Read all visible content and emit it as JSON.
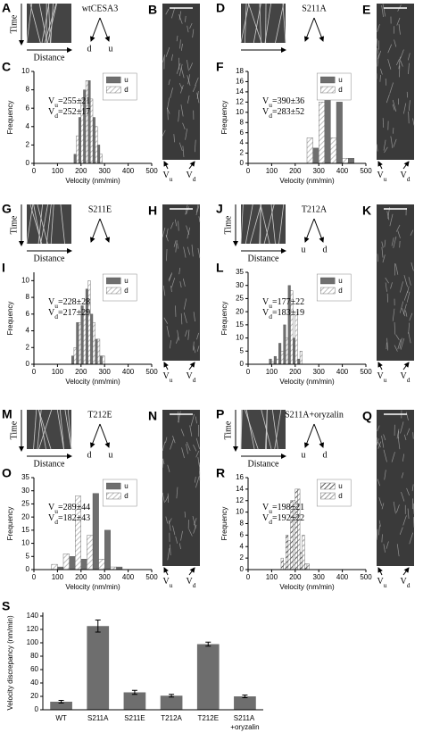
{
  "kymographs": [
    {
      "panel": "A",
      "title": "wtCESA3",
      "time": "Time",
      "distance": "Distance",
      "left": "d",
      "right": "u"
    },
    {
      "panel": "D",
      "title": "S211A"
    },
    {
      "panel": "G",
      "title": "S211E",
      "time": "Time",
      "distance": "Distance"
    },
    {
      "panel": "J",
      "title": "T212A",
      "time": "Time",
      "distance": "Distance",
      "left": "u",
      "right": "d"
    },
    {
      "panel": "M",
      "title": "T212E",
      "time": "Time",
      "distance": "Distance",
      "left": "d",
      "right": "u"
    },
    {
      "panel": "P",
      "title": "S211A+oryzalin",
      "time": "Time",
      "distance": "Distance",
      "left": "u",
      "right": "d"
    }
  ],
  "images": [
    {
      "panel": "B",
      "labels": [
        "Vu",
        "Vd"
      ]
    },
    {
      "panel": "E",
      "labels": [
        "Vu",
        "Vd"
      ]
    },
    {
      "panel": "H",
      "labels": [
        "Vu",
        "Vd"
      ]
    },
    {
      "panel": "K",
      "labels": [
        "Vu",
        "Vd"
      ]
    },
    {
      "panel": "N",
      "labels": [
        "Vu",
        "Vd"
      ]
    },
    {
      "panel": "Q",
      "labels": [
        "Vu",
        "Vd"
      ]
    }
  ],
  "chart_data": [
    {
      "type": "histogram",
      "panel": "C",
      "x_label": "Velocity (nm/min)",
      "y_label": "Frequency",
      "x": [
        180,
        200,
        220,
        240,
        260,
        280
      ],
      "xlim": [
        0,
        500
      ],
      "xticks": [
        0,
        100,
        200,
        300,
        400,
        500
      ],
      "ylim": [
        0,
        10
      ],
      "yticks": [
        0,
        2,
        4,
        6,
        8,
        10
      ],
      "annotations": [
        "Vu=255±21",
        "Vd=252±17"
      ],
      "series": [
        {
          "name": "u",
          "color": "#6e6e6e",
          "hatch": false,
          "values": [
            1,
            5,
            8,
            9,
            5,
            2
          ]
        },
        {
          "name": "d",
          "color": "#bdbdbd",
          "hatch": true,
          "values": [
            3,
            7,
            9,
            7,
            4,
            1
          ]
        }
      ]
    },
    {
      "type": "histogram",
      "panel": "F",
      "x_label": "Velocity (nm/min)",
      "y_label": "Frequency",
      "x": [
        250,
        300,
        350,
        400,
        450
      ],
      "xlim": [
        0,
        500
      ],
      "xticks": [
        0,
        100,
        200,
        300,
        400,
        500
      ],
      "ylim": [
        0,
        18
      ],
      "yticks": [
        0,
        2,
        4,
        6,
        8,
        10,
        12,
        14,
        16,
        18
      ],
      "annotations": [
        "Vu=390±36",
        "Vd=283±52"
      ],
      "series": [
        {
          "name": "u",
          "color": "#6e6e6e",
          "hatch": false,
          "values": [
            0,
            3,
            17,
            12,
            1
          ]
        },
        {
          "name": "d",
          "color": "#bdbdbd",
          "hatch": true,
          "values": [
            5,
            12,
            5,
            1,
            0
          ]
        }
      ]
    },
    {
      "type": "histogram",
      "panel": "I",
      "x_label": "Velocity (nm/min)",
      "y_label": "Frequency",
      "x": [
        170,
        190,
        210,
        230,
        250,
        270,
        290
      ],
      "xlim": [
        0,
        500
      ],
      "xticks": [
        0,
        100,
        200,
        300,
        400,
        500
      ],
      "ylim": [
        0,
        11
      ],
      "yticks": [
        0,
        2,
        4,
        6,
        8,
        10
      ],
      "annotations": [
        "Vu=228±28",
        "Vd=217±29"
      ],
      "series": [
        {
          "name": "u",
          "color": "#6e6e6e",
          "hatch": false,
          "values": [
            1,
            5,
            7,
            9,
            6,
            3,
            1
          ]
        },
        {
          "name": "d",
          "color": "#bdbdbd",
          "hatch": true,
          "values": [
            2,
            5,
            6,
            10,
            5,
            3,
            1
          ]
        }
      ]
    },
    {
      "type": "histogram",
      "panel": "L",
      "x_label": "Velocity (nm/min)",
      "y_label": "Frequency",
      "x": [
        100,
        120,
        140,
        160,
        180,
        200,
        220
      ],
      "xlim": [
        0,
        500
      ],
      "xticks": [
        0,
        100,
        200,
        300,
        400,
        500
      ],
      "ylim": [
        0,
        35
      ],
      "yticks": [
        0,
        5,
        10,
        15,
        20,
        25,
        30,
        35
      ],
      "annotations": [
        "Vu=177±22",
        "Vd=183±19"
      ],
      "series": [
        {
          "name": "u",
          "color": "#6e6e6e",
          "hatch": false,
          "values": [
            2,
            3,
            8,
            15,
            30,
            10,
            2
          ]
        },
        {
          "name": "d",
          "color": "#bdbdbd",
          "hatch": true,
          "values": [
            1,
            2,
            5,
            10,
            28,
            20,
            5
          ]
        }
      ]
    },
    {
      "type": "histogram",
      "panel": "O",
      "x_label": "Velocity (nm/min)",
      "y_label": "Frequency",
      "x": [
        75,
        125,
        175,
        225,
        275,
        325,
        375
      ],
      "xlim": [
        0,
        500
      ],
      "xticks": [
        0,
        100,
        200,
        300,
        400,
        500
      ],
      "ylim": [
        0,
        35
      ],
      "yticks": [
        0,
        5,
        10,
        15,
        20,
        25,
        30,
        35
      ],
      "annotations": [
        "Vu=289±44",
        "Vd=182±43"
      ],
      "series": [
        {
          "name": "u",
          "color": "#6e6e6e",
          "hatch": false,
          "values": [
            0,
            1,
            5,
            4,
            29,
            15,
            1
          ]
        },
        {
          "name": "d",
          "color": "#bdbdbd",
          "hatch": true,
          "values": [
            2,
            6,
            28,
            13,
            4,
            1,
            0
          ]
        }
      ]
    },
    {
      "type": "histogram",
      "panel": "R",
      "x_label": "Velocity (nm/min)",
      "y_label": "Frequency",
      "x": [
        150,
        170,
        190,
        210,
        230,
        250
      ],
      "xlim": [
        0,
        500
      ],
      "xticks": [
        0,
        100,
        200,
        300,
        400,
        500
      ],
      "ylim": [
        0,
        16
      ],
      "yticks": [
        0,
        2,
        4,
        6,
        8,
        10,
        12,
        14,
        16
      ],
      "annotations": [
        "Vu=198±21",
        "Vd=192±22"
      ],
      "series": [
        {
          "name": "u",
          "color": "#555555",
          "hatch": true,
          "values": [
            2,
            6,
            12,
            14,
            3,
            1
          ]
        },
        {
          "name": "d",
          "color": "#9a9a9a",
          "hatch": true,
          "values": [
            1,
            5,
            12,
            14,
            6,
            1
          ]
        }
      ]
    },
    {
      "type": "bar",
      "panel": "S",
      "y_label": "Velocity discrepancy (nm/min)",
      "categories": [
        "WT",
        "S211A",
        "S211E",
        "T212A",
        "T212E",
        "S211A +oryzalin"
      ],
      "values": [
        12,
        125,
        26,
        21,
        98,
        20
      ],
      "errors": [
        2,
        9,
        3,
        2,
        3,
        2
      ],
      "color": "#6e6e6e",
      "ylim": [
        0,
        140
      ],
      "yticks": [
        0,
        20,
        40,
        60,
        80,
        100,
        120,
        140
      ]
    }
  ]
}
